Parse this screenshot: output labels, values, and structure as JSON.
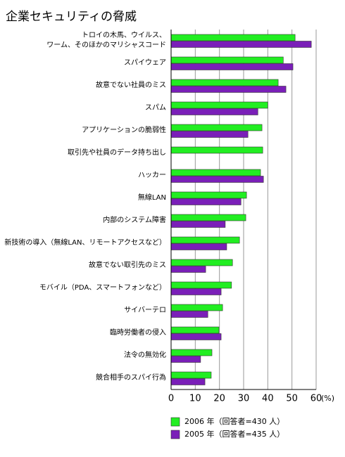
{
  "chart_data": {
    "type": "hbar",
    "title": "企業セキュリティの脅威",
    "categories": [
      "トロイの木馬、ウイルス、\nワーム、そのほかのマリシャスコード",
      "スパイウェア",
      "故意でない社員のミス",
      "スパム",
      "アプリケーションの脆弱性",
      "取引先や社員のデータ持ち出し",
      "ハッカー",
      "無線LAN",
      "内部のシステム障害",
      "新技術の導入（無線LAN、リモートアクセスなど）",
      "故意でない取引先のミス",
      "モバイル（PDA、スマートフォンなど）",
      "サイバーテロ",
      "臨時労働者の侵入",
      "法令の無効化",
      "競合相手のスパイ行為"
    ],
    "series": [
      {
        "name": "2006 年（回答者=430 人）",
        "color": "#22ee22",
        "values": [
          51.3,
          46.4,
          44.3,
          40,
          37.6,
          37.9,
          37,
          31.2,
          30.9,
          28.3,
          25.4,
          25,
          21.3,
          19.8,
          16.9,
          16.6
        ]
      },
      {
        "name": "2005 年（回答者=435 人）",
        "color": "#7a1fb8",
        "values": [
          58,
          50.4,
          47.5,
          35.9,
          31.8,
          null,
          38.2,
          28.9,
          22.4,
          23,
          14.3,
          20.7,
          15.2,
          20.7,
          12.2,
          14
        ]
      }
    ],
    "xlim": [
      0,
      60
    ],
    "xticks": [
      0,
      10,
      20,
      30,
      40,
      50,
      60
    ],
    "x_label": "(%)",
    "grid": true
  }
}
